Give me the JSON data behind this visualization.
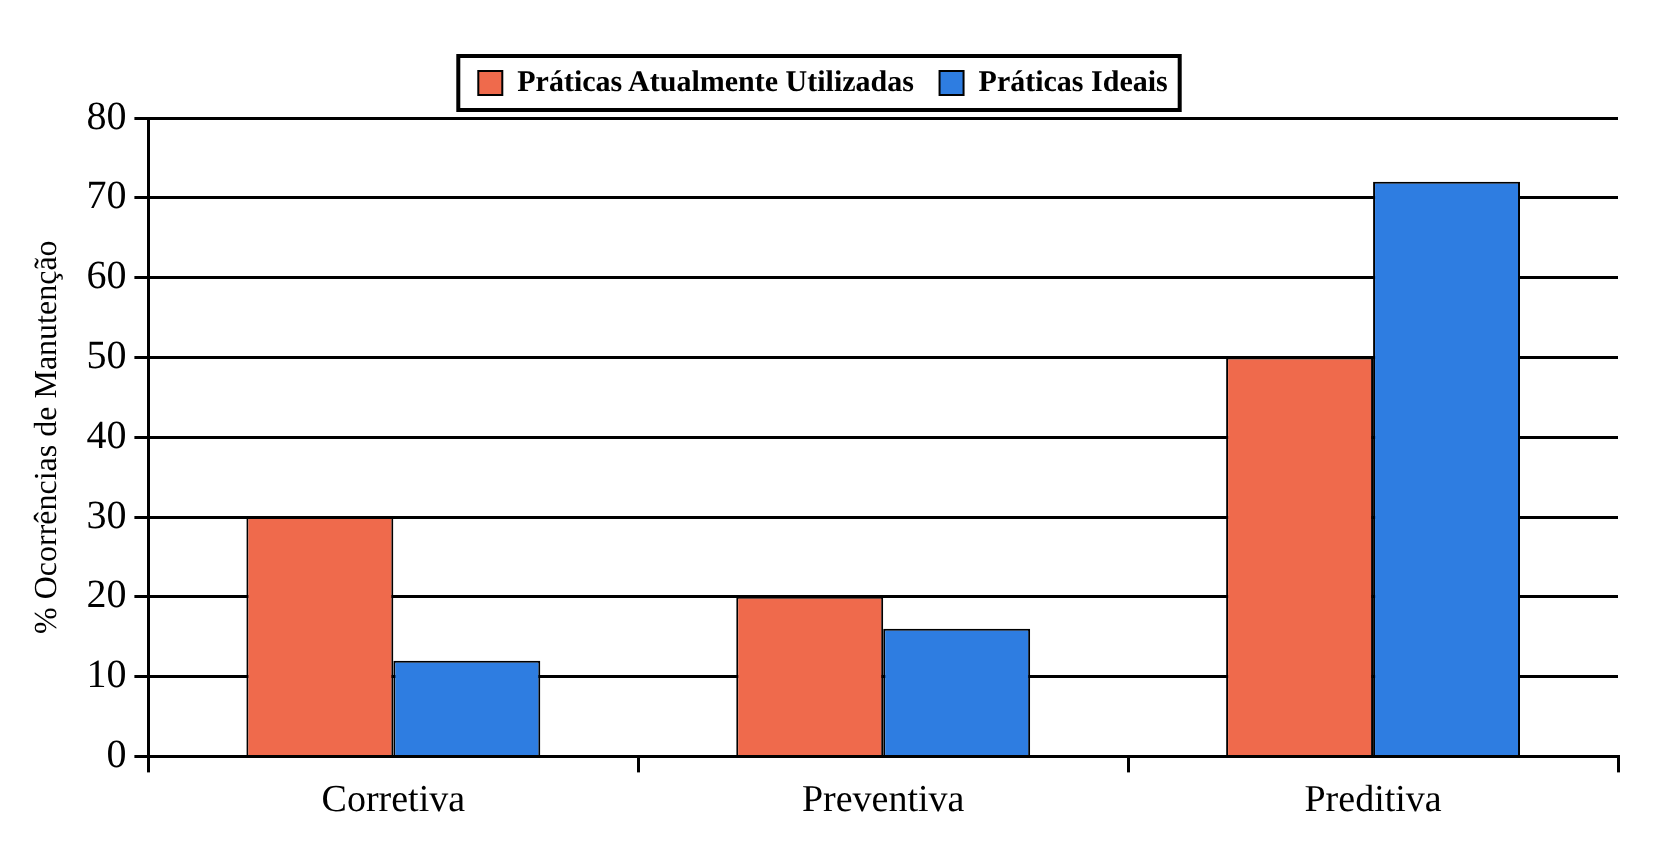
{
  "chart_data": {
    "type": "bar",
    "categories": [
      "Corretiva",
      "Preventiva",
      "Preditiva"
    ],
    "series": [
      {
        "name": "Práticas Atualmente Utilizadas",
        "color": "#ef6a4c",
        "values": [
          30,
          20,
          50
        ]
      },
      {
        "name": "Práticas Ideais",
        "color": "#2e7de1",
        "values": [
          12,
          16,
          72
        ]
      }
    ],
    "ylabel": "% Ocorrências de Manutenção",
    "ylim": [
      0,
      80
    ],
    "yticks": [
      0,
      10,
      20,
      30,
      40,
      50,
      60,
      70,
      80
    ],
    "grid": "y",
    "legend": "top"
  }
}
